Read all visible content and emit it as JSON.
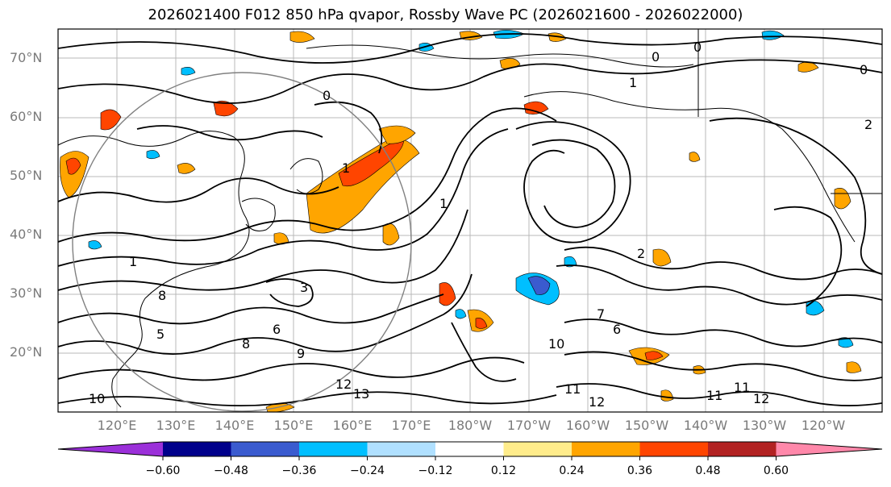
{
  "title": "2026021400 F012 850 hPa qvapor, Rossby Wave PC (2026021600 - 2026022000)",
  "lat_labels": [
    "70°N",
    "60°N",
    "50°N",
    "40°N",
    "30°N",
    "20°N"
  ],
  "lon_labels": [
    "120°E",
    "130°E",
    "140°E",
    "150°E",
    "160°E",
    "170°E",
    "180°W",
    "170°W",
    "160°W",
    "150°W",
    "140°W",
    "130°W",
    "120°W"
  ],
  "colorbar": {
    "colors": [
      "#9b30d9",
      "#00008b",
      "#3a5bcf",
      "#00bfff",
      "#b0e0ff",
      "#ffffff",
      "#ffec8b",
      "#ffa500",
      "#ff4500",
      "#b22222",
      "#ff88aa"
    ],
    "tick_labels": [
      "−0.60",
      "−0.48",
      "−0.36",
      "−0.24",
      "−0.12",
      "0.12",
      "0.24",
      "0.36",
      "0.48",
      "0.60"
    ]
  },
  "contour_labels": [
    "0",
    "0",
    "0",
    "0",
    "1",
    "1",
    "1",
    "1",
    "2",
    "2",
    "3",
    "5",
    "6",
    "6",
    "7",
    "8",
    "8",
    "9",
    "10",
    "10",
    "11",
    "11",
    "11",
    "12",
    "12",
    "12",
    "13"
  ]
}
